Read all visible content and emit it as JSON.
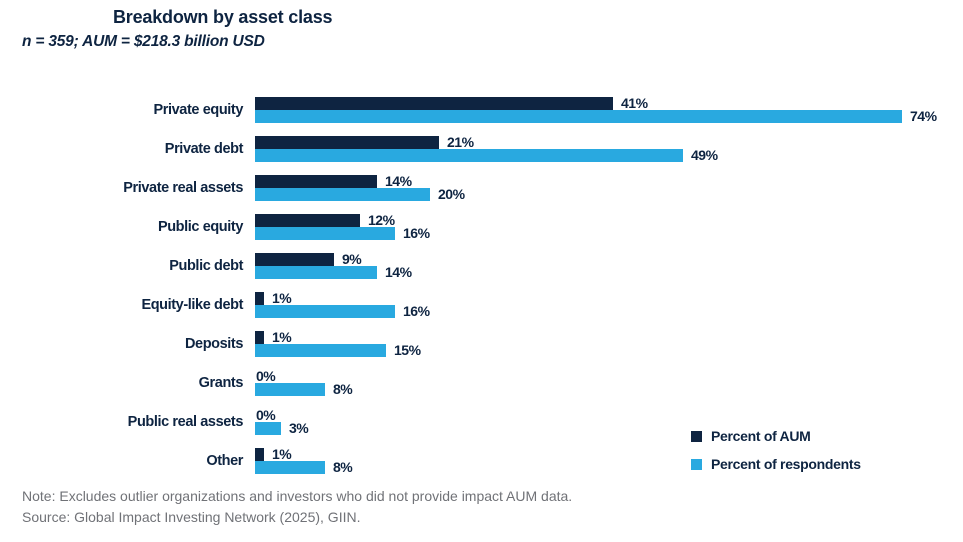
{
  "header": {
    "title": "Breakdown by asset class",
    "subtitle": "n = 359; AUM = $218.3 billion USD"
  },
  "chart_data": {
    "type": "bar",
    "orientation": "horizontal",
    "title": "Breakdown by asset class",
    "subtitle": "n = 359; AUM = $218.3 billion USD",
    "categories": [
      "Private equity",
      "Private debt",
      "Private real assets",
      "Public equity",
      "Public debt",
      "Equity-like debt",
      "Deposits",
      "Grants",
      "Public real assets",
      "Other"
    ],
    "series": [
      {
        "name": "Percent of AUM",
        "color": "#0E2441",
        "values": [
          41,
          21,
          14,
          12,
          9,
          1,
          1,
          0,
          0,
          1
        ]
      },
      {
        "name": "Percent of respondents",
        "color": "#29A9E0",
        "values": [
          74,
          49,
          20,
          16,
          14,
          16,
          15,
          8,
          3,
          8
        ]
      }
    ],
    "value_suffix": "%",
    "xlim": [
      0,
      74
    ],
    "grid": false,
    "data_labels": true,
    "legend_position": "bottom-right"
  },
  "footer": {
    "note": "Note: Excludes outlier organizations and investors who did not provide impact AUM data.",
    "source": "Source: Global Impact Investing Network (2025), GIIN."
  },
  "colors": {
    "navy": "#0E2441",
    "blue": "#29A9E0",
    "footnote_gray": "#707277",
    "background": "#FFFFFF"
  }
}
